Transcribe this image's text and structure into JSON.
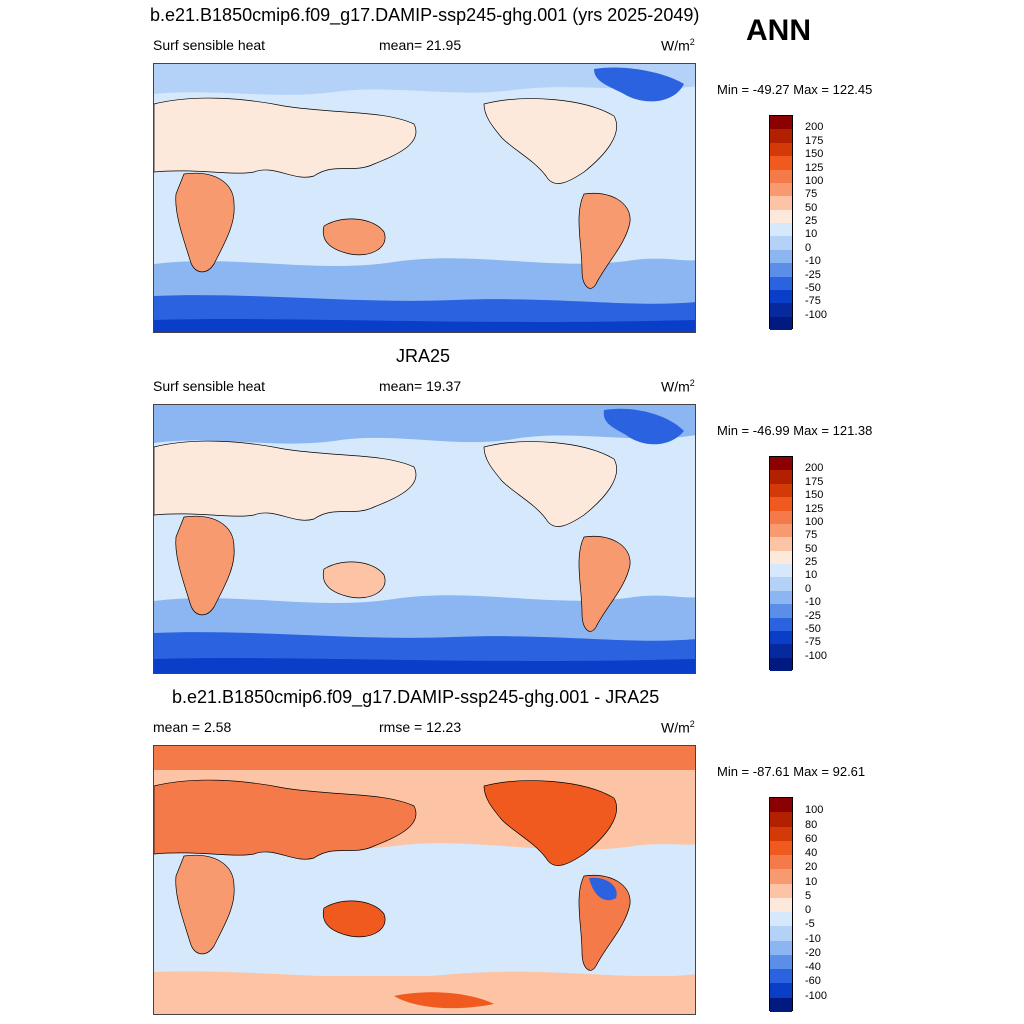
{
  "season": "ANN",
  "panels": [
    {
      "title": "b.e21.B1850cmip6.f09_g17.DAMIP-ssp245-ghg.001 (yrs 2025-2049)",
      "left_label": "Surf sensible heat",
      "center_label": "mean=  21.95",
      "units": "W/m",
      "units_sup": "2",
      "range_text": "Min = -49.27 Max = 122.45",
      "colorbar": {
        "levels": [
          "200",
          "175",
          "150",
          "125",
          "100",
          "75",
          "50",
          "25",
          "10",
          "0",
          "-10",
          "-25",
          "-50",
          "-75",
          "-100"
        ],
        "colors": [
          "#8b0000",
          "#b22000",
          "#d43a08",
          "#f05a1e",
          "#f47a4a",
          "#f89a70",
          "#fcc4a4",
          "#fde8dc",
          "#d6e8fb",
          "#b4d2f7",
          "#8cb6f2",
          "#5a8ee8",
          "#2a62e0",
          "#0a3ec8",
          "#062a9e",
          "#001a80"
        ]
      }
    },
    {
      "title": "JRA25",
      "left_label": "Surf sensible heat",
      "center_label": "mean=  19.37",
      "units": "W/m",
      "units_sup": "2",
      "range_text": "Min = -46.99 Max = 121.38",
      "colorbar": {
        "levels": [
          "200",
          "175",
          "150",
          "125",
          "100",
          "75",
          "50",
          "25",
          "10",
          "0",
          "-10",
          "-25",
          "-50",
          "-75",
          "-100"
        ],
        "colors": [
          "#8b0000",
          "#b22000",
          "#d43a08",
          "#f05a1e",
          "#f47a4a",
          "#f89a70",
          "#fcc4a4",
          "#fde8dc",
          "#d6e8fb",
          "#b4d2f7",
          "#8cb6f2",
          "#5a8ee8",
          "#2a62e0",
          "#0a3ec8",
          "#062a9e",
          "#001a80"
        ]
      }
    },
    {
      "title": "b.e21.B1850cmip6.f09_g17.DAMIP-ssp245-ghg.001 - JRA25",
      "left_label": "mean =   2.58",
      "center_label": "rmse =  12.23",
      "units": "W/m",
      "units_sup": "2",
      "range_text": "Min = -87.61 Max =  92.61",
      "colorbar": {
        "levels": [
          "100",
          "80",
          "60",
          "40",
          "20",
          "10",
          "5",
          "0",
          "-5",
          "-10",
          "-20",
          "-40",
          "-60",
          "-100"
        ],
        "colors": [
          "#8b0000",
          "#b22000",
          "#d43a08",
          "#f05a1e",
          "#f47a4a",
          "#f89a70",
          "#fcc4a4",
          "#fde8dc",
          "#d6e8fb",
          "#b4d2f7",
          "#8cb6f2",
          "#5a8ee8",
          "#2a62e0",
          "#0a3ec8",
          "#001a80"
        ]
      }
    }
  ]
}
